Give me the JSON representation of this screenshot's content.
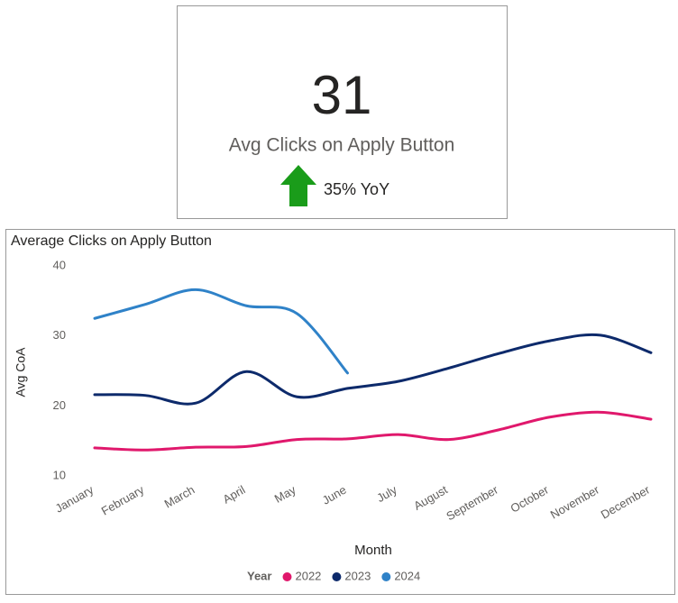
{
  "card": {
    "value": "31",
    "label": "Avg Clicks on Apply Button",
    "change": "35% YoY"
  },
  "chart_data": {
    "type": "line",
    "title": "Average Clicks on Apply Button",
    "x_label": "Month",
    "y_label": "Avg CoA",
    "legend_title": "Year",
    "categories": [
      "January",
      "February",
      "March",
      "April",
      "May",
      "June",
      "July",
      "August",
      "September",
      "October",
      "November",
      "December"
    ],
    "series": [
      {
        "name": "2022",
        "color": "#e0186c",
        "values": [
          14,
          13.7,
          14.1,
          14.2,
          15.2,
          15.3,
          15.9,
          15.2,
          16.6,
          18.4,
          19.1,
          18.1
        ]
      },
      {
        "name": "2023",
        "color": "#0d2a6b",
        "values": [
          21.6,
          21.5,
          20.4,
          24.9,
          21.3,
          22.5,
          23.5,
          25.4,
          27.5,
          29.3,
          30.1,
          27.6
        ]
      },
      {
        "name": "2024",
        "color": "#2f82c8",
        "values": [
          32.5,
          34.5,
          36.6,
          34.3,
          33.2,
          24.7,
          null,
          null,
          null,
          null,
          null,
          null
        ]
      }
    ],
    "ylim": [
      10,
      40
    ],
    "yticks": [
      10,
      20,
      30,
      40
    ],
    "grid": false
  }
}
